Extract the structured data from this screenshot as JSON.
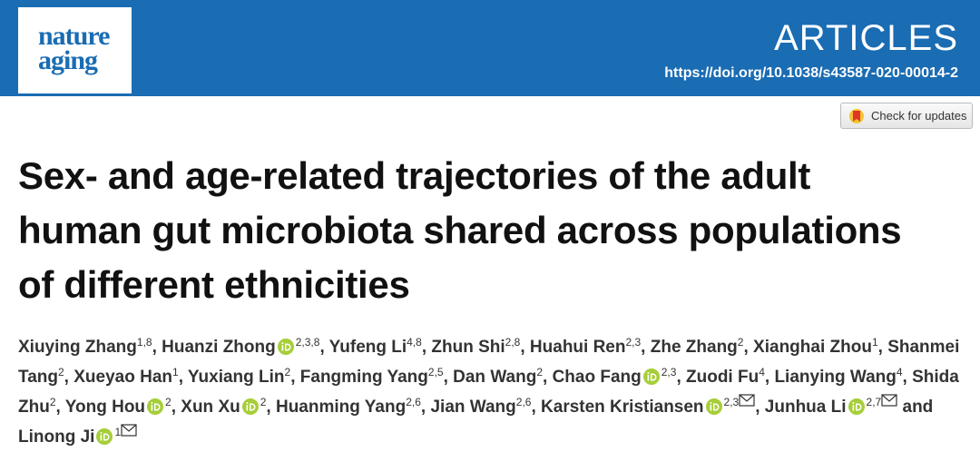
{
  "header": {
    "logo_top": "nature",
    "logo_bottom": "aging",
    "section": "ARTICLES",
    "doi": "https://doi.org/10.1038/s43587-020-00014-2"
  },
  "check_updates": "Check for updates",
  "title_lines": [
    "Sex- and age-related trajectories of the adult",
    "human gut microbiota shared across populations",
    "of different ethnicities"
  ],
  "separator": ",",
  "conjunction": "and",
  "authors": [
    {
      "name": "Xiuying Zhang",
      "affiliations": "1,8"
    },
    {
      "name": "Huanzi Zhong",
      "affiliations": "2,3,8",
      "orcid": true
    },
    {
      "name": "Yufeng Li",
      "affiliations": "4,8"
    },
    {
      "name": "Zhun Shi",
      "affiliations": "2,8"
    },
    {
      "name": "Huahui Ren",
      "affiliations": "2,3"
    },
    {
      "name": "Zhe Zhang",
      "affiliations": "2"
    },
    {
      "name": "Xianghai Zhou",
      "affiliations": "1"
    },
    {
      "name": "Shanmei Tang",
      "affiliations": "2"
    },
    {
      "name": "Xueyao Han",
      "affiliations": "1"
    },
    {
      "name": "Yuxiang Lin",
      "affiliations": "2"
    },
    {
      "name": "Fangming Yang",
      "affiliations": "2,5"
    },
    {
      "name": "Dan Wang",
      "affiliations": "2"
    },
    {
      "name": "Chao Fang",
      "affiliations": "2,3",
      "orcid": true
    },
    {
      "name": "Zuodi Fu",
      "affiliations": "4"
    },
    {
      "name": "Lianying Wang",
      "affiliations": "4"
    },
    {
      "name": "Shida Zhu",
      "affiliations": "2"
    },
    {
      "name": "Yong Hou",
      "affiliations": "2",
      "orcid": true
    },
    {
      "name": "Xun Xu",
      "affiliations": "2",
      "orcid": true
    },
    {
      "name": "Huanming Yang",
      "affiliations": "2,6"
    },
    {
      "name": "Jian Wang",
      "affiliations": "2,6"
    },
    {
      "name": "Karsten Kristiansen",
      "affiliations": "2,3",
      "orcid": true,
      "email": true
    },
    {
      "name": "Junhua Li",
      "affiliations": "2,7",
      "orcid": true,
      "email": true
    },
    {
      "name": "Linong Ji",
      "affiliations": "1",
      "orcid": true,
      "email": true
    }
  ]
}
